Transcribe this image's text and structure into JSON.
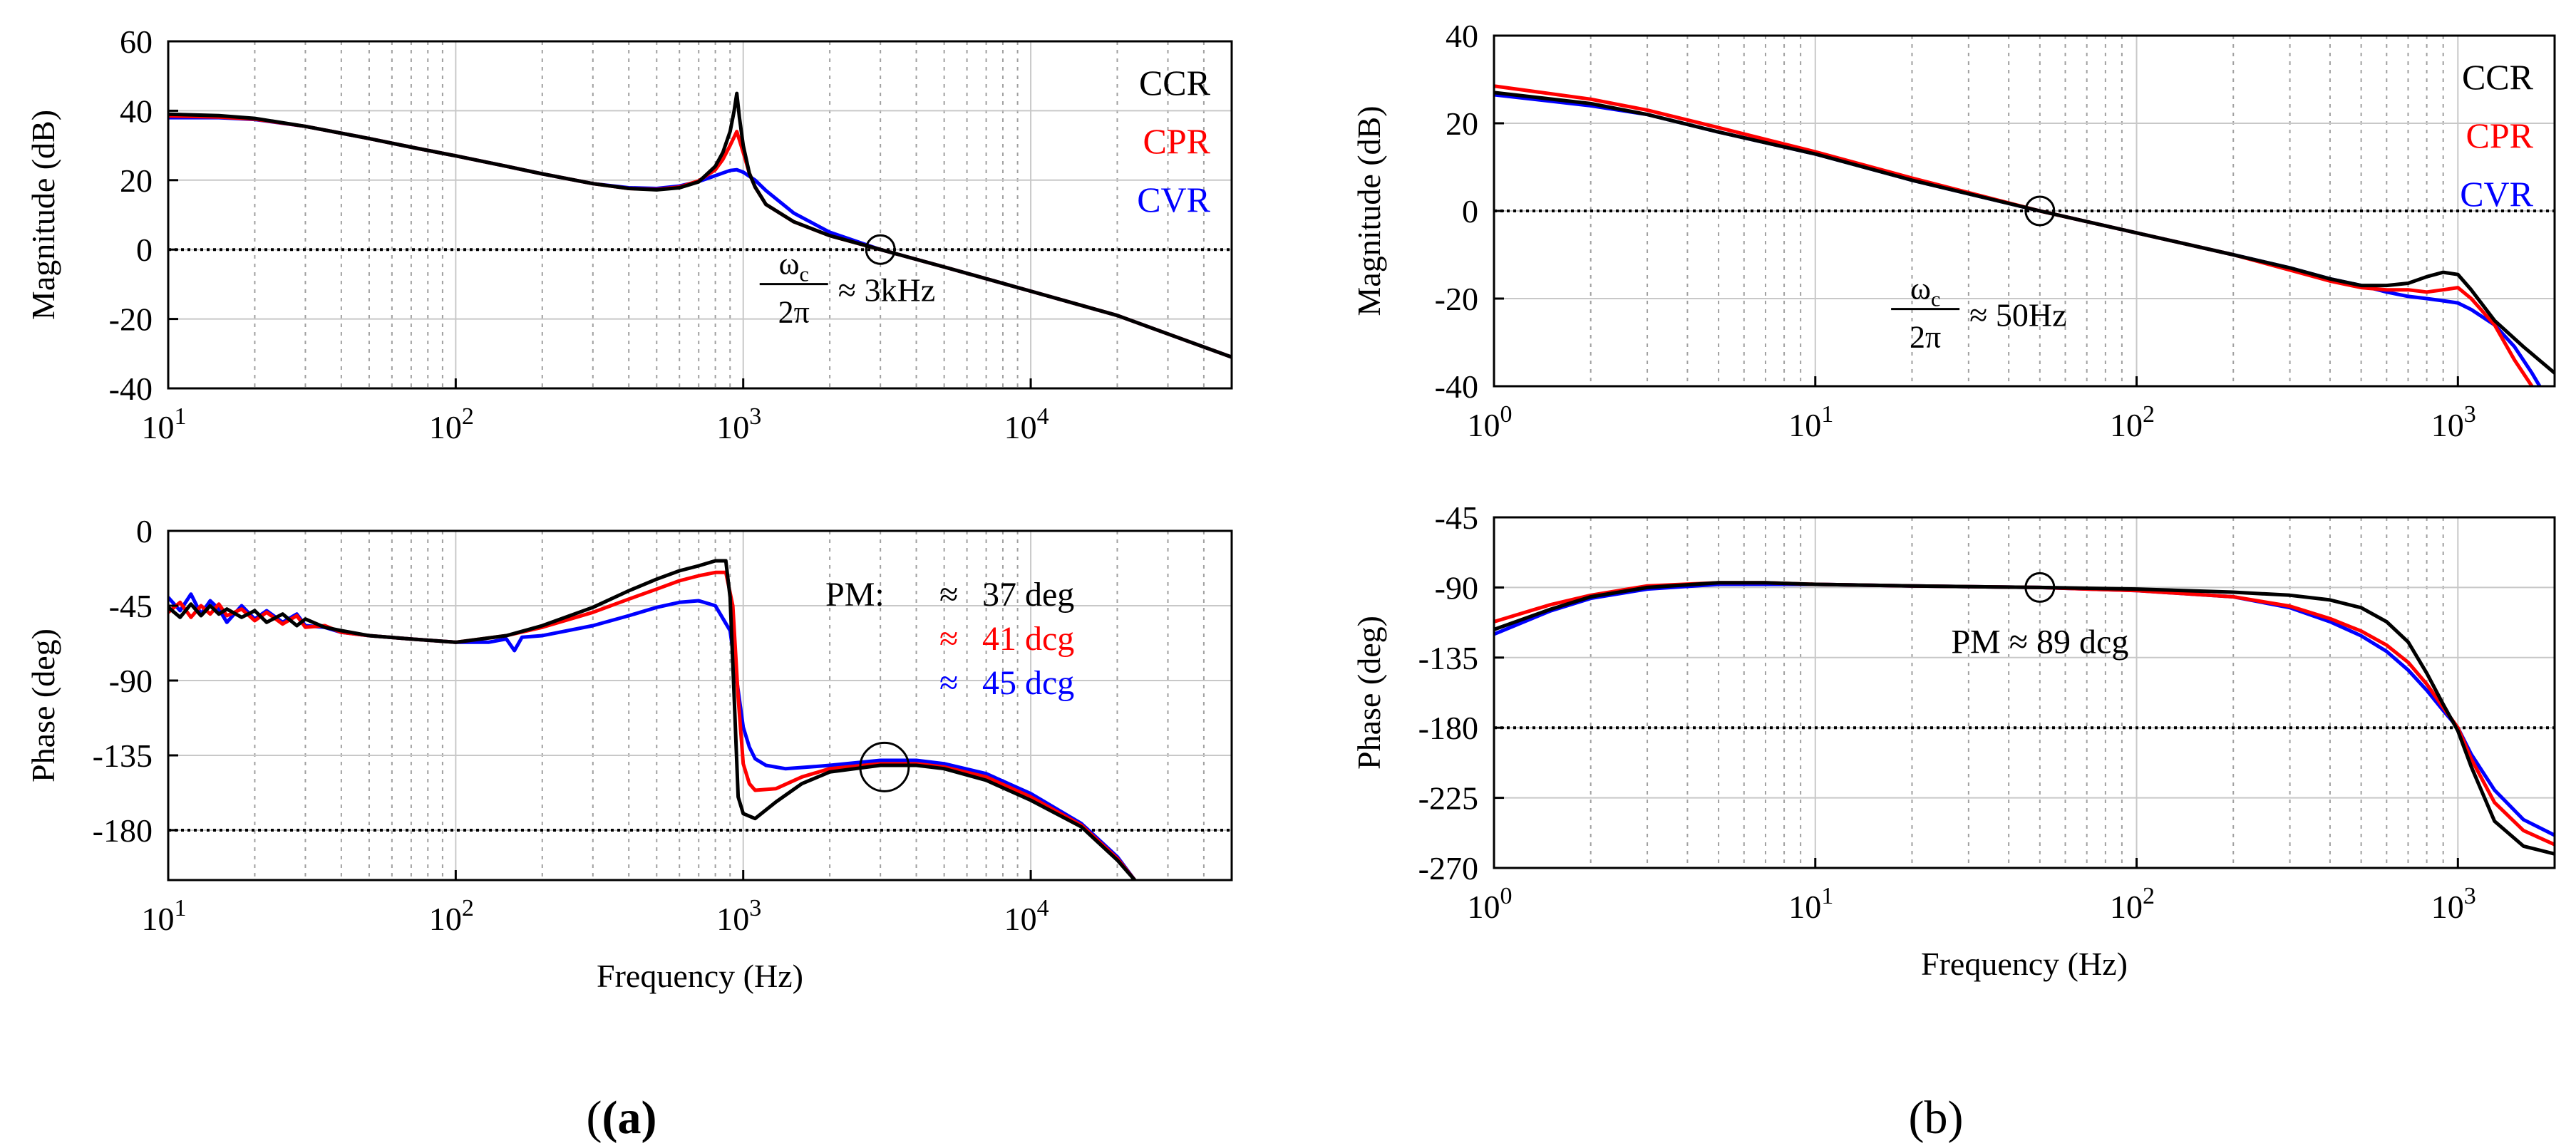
{
  "figure": {
    "panel_a_label": "(a)",
    "panel_b_label": "(b)"
  },
  "colors": {
    "CCR": "#000000",
    "CPR": "#ff0000",
    "CVR": "#0000ff",
    "grid": "#b0b0b0",
    "axis": "#000000"
  },
  "chart_data": [
    {
      "id": "a_mag",
      "type": "line",
      "xscale": "log",
      "xlim": [
        10,
        50000
      ],
      "ylim": [
        -40,
        60
      ],
      "xticks": [
        10,
        100,
        1000,
        10000
      ],
      "xticklabels": [
        [
          "10",
          "1"
        ],
        [
          "10",
          "2"
        ],
        [
          "10",
          "3"
        ],
        [
          "10",
          "4"
        ]
      ],
      "yticks": [
        60,
        40,
        20,
        0,
        -20,
        -40
      ],
      "yticklabels": [
        "60",
        "40",
        "20",
        "0",
        "-20",
        "-40"
      ],
      "xlabel": "",
      "ylabel": "Magnitude (dB)",
      "legend": [
        "CCR",
        "CPR",
        "CVR"
      ],
      "reference_line": 0,
      "marker": {
        "x": 3000,
        "y": 0
      },
      "annotation": {
        "numerator": "ω",
        "subscript": "c",
        "denominator": "2π",
        "text": "≈ 3kHz",
        "x": 1500,
        "y": -12
      },
      "series": [
        {
          "name": "CCR",
          "x": [
            10,
            15,
            20,
            30,
            50,
            70,
            100,
            150,
            200,
            300,
            400,
            500,
            600,
            700,
            800,
            850,
            900,
            930,
            950,
            970,
            1000,
            1050,
            1100,
            1200,
            1500,
            2000,
            3000,
            5000,
            10000,
            20000,
            50000
          ],
          "y": [
            39,
            38.6,
            37.8,
            35.5,
            32,
            29.5,
            27,
            24,
            21.8,
            19,
            17.6,
            17.2,
            17.8,
            19.5,
            24,
            28,
            34,
            40,
            45,
            38,
            30,
            22,
            18,
            13,
            8,
            4,
            0,
            -5,
            -12,
            -19,
            -31
          ]
        },
        {
          "name": "CPR",
          "x": [
            10,
            15,
            20,
            30,
            50,
            70,
            100,
            150,
            200,
            300,
            400,
            500,
            600,
            700,
            800,
            850,
            900,
            950,
            1000,
            1050,
            1100,
            1200,
            1500,
            2000,
            3000,
            5000,
            10000,
            20000,
            50000
          ],
          "y": [
            38.5,
            38.2,
            37.6,
            35.5,
            32,
            29.5,
            27,
            24,
            21.8,
            19,
            17.6,
            17.3,
            18,
            19.8,
            23,
            26,
            30,
            34,
            28,
            22,
            18,
            13,
            8,
            4,
            0,
            -5,
            -12,
            -19,
            -31
          ]
        },
        {
          "name": "CVR",
          "x": [
            10,
            15,
            20,
            30,
            50,
            70,
            100,
            150,
            200,
            300,
            400,
            500,
            600,
            700,
            800,
            900,
            950,
            1000,
            1100,
            1200,
            1500,
            2000,
            3000,
            5000,
            10000,
            20000,
            50000
          ],
          "y": [
            38,
            38,
            37.5,
            35.5,
            32,
            29.5,
            27,
            24,
            21.8,
            19,
            17.8,
            17.6,
            18.3,
            19.6,
            21.3,
            22.8,
            23,
            22.3,
            20,
            17,
            10.5,
            5,
            0,
            -5,
            -12,
            -19,
            -31
          ]
        }
      ]
    },
    {
      "id": "a_phase",
      "type": "line",
      "xscale": "log",
      "xlim": [
        10,
        50000
      ],
      "ylim": [
        -210,
        0
      ],
      "xticks": [
        10,
        100,
        1000,
        10000
      ],
      "xticklabels": [
        [
          "10",
          "1"
        ],
        [
          "10",
          "2"
        ],
        [
          "10",
          "3"
        ],
        [
          "10",
          "4"
        ]
      ],
      "yticks": [
        0,
        -45,
        -90,
        -135,
        -180
      ],
      "yticklabels": [
        "0",
        "-45",
        "-90",
        "-135",
        "-180"
      ],
      "xlabel": "Frequency (Hz)",
      "ylabel": "Phase (deg)",
      "reference_line": -180,
      "marker": {
        "x": 3100,
        "y": -142
      },
      "pm_labels": {
        "title": "PM:",
        "approx": "≈",
        "values": [
          "37 deg",
          "41 dcg",
          "45 dcg"
        ]
      },
      "series": [
        {
          "name": "CCR",
          "x": [
            10,
            11,
            12,
            13,
            14,
            15,
            16,
            18,
            20,
            22,
            25,
            28,
            30,
            35,
            40,
            50,
            70,
            100,
            150,
            200,
            300,
            400,
            500,
            600,
            700,
            800,
            870,
            900,
            930,
            960,
            1000,
            1100,
            1300,
            1600,
            2000,
            3000,
            4000,
            5000,
            7000,
            10000,
            15000,
            20000,
            23000
          ],
          "y": [
            -46,
            -52,
            -44,
            -51,
            -45,
            -50,
            -47,
            -52,
            -48,
            -55,
            -50,
            -57,
            -53,
            -58,
            -60,
            -63,
            -65,
            -67,
            -63,
            -57,
            -46,
            -36,
            -29,
            -24,
            -21,
            -18,
            -18,
            -40,
            -100,
            -160,
            -170,
            -173,
            -163,
            -152,
            -145,
            -141,
            -141,
            -143,
            -150,
            -162,
            -178,
            -198,
            -210
          ]
        },
        {
          "name": "CPR",
          "x": [
            10,
            11,
            12,
            13,
            14,
            15,
            16,
            18,
            20,
            22,
            25,
            28,
            30,
            35,
            40,
            50,
            70,
            100,
            150,
            200,
            300,
            400,
            500,
            600,
            700,
            800,
            870,
            920,
            960,
            1000,
            1050,
            1100,
            1300,
            1600,
            2000,
            3000,
            4000,
            5000,
            7000,
            10000,
            15000,
            20000,
            23000
          ],
          "y": [
            -49,
            -43,
            -52,
            -45,
            -50,
            -44,
            -51,
            -47,
            -54,
            -49,
            -56,
            -51,
            -58,
            -57,
            -61,
            -63,
            -65,
            -67,
            -63,
            -58,
            -49,
            -41,
            -35,
            -30,
            -27,
            -25,
            -25,
            -45,
            -100,
            -140,
            -152,
            -156,
            -155,
            -148,
            -143,
            -140,
            -140,
            -142,
            -148,
            -160,
            -177,
            -197,
            -210
          ]
        },
        {
          "name": "CVR",
          "x": [
            10,
            11,
            12,
            13,
            14,
            15,
            16,
            18,
            20,
            22,
            25,
            28,
            30,
            35,
            40,
            50,
            70,
            100,
            130,
            150,
            160,
            170,
            200,
            300,
            400,
            500,
            600,
            700,
            800,
            900,
            950,
            1000,
            1050,
            1100,
            1200,
            1400,
            1700,
            2000,
            3000,
            4000,
            5000,
            7000,
            10000,
            15000,
            20000,
            23000
          ],
          "y": [
            -40,
            -48,
            -38,
            -50,
            -42,
            -47,
            -55,
            -45,
            -53,
            -48,
            -55,
            -50,
            -57,
            -58,
            -61,
            -63,
            -65,
            -67,
            -67,
            -65,
            -72,
            -64,
            -63,
            -57,
            -51,
            -46,
            -43,
            -42,
            -45,
            -60,
            -90,
            -118,
            -130,
            -137,
            -141,
            -143,
            -142,
            -141,
            -138,
            -138,
            -140,
            -146,
            -158,
            -176,
            -196,
            -210
          ]
        }
      ]
    },
    {
      "id": "b_mag",
      "type": "line",
      "xscale": "log",
      "xlim": [
        1,
        2000
      ],
      "ylim": [
        -40,
        40
      ],
      "xticks": [
        1,
        10,
        100,
        1000
      ],
      "xticklabels": [
        [
          "10",
          "0"
        ],
        [
          "10",
          "1"
        ],
        [
          "10",
          "2"
        ],
        [
          "10",
          "3"
        ]
      ],
      "yticks": [
        40,
        20,
        0,
        -20,
        -40
      ],
      "yticklabels": [
        "40",
        "20",
        "0",
        "-20",
        "-40"
      ],
      "xlabel": "",
      "ylabel": "Magnitude (dB)",
      "legend": [
        "CCR",
        "CPR",
        "CVR"
      ],
      "reference_line": 0,
      "marker": {
        "x": 50,
        "y": 0
      },
      "annotation": {
        "numerator": "ω",
        "subscript": "c",
        "denominator": "2π",
        "text": "≈ 50Hz",
        "x": 22,
        "y": -24
      },
      "series": [
        {
          "name": "CCR",
          "x": [
            1,
            2,
            3,
            5,
            10,
            20,
            50,
            100,
            200,
            300,
            400,
            500,
            600,
            700,
            800,
            900,
            1000,
            1100,
            1300,
            1600,
            2000
          ],
          "y": [
            27,
            24.5,
            22,
            18,
            13,
            7,
            0,
            -5,
            -10,
            -13,
            -15.5,
            -17,
            -17,
            -16.5,
            -15,
            -14,
            -14.5,
            -18,
            -25,
            -31,
            -37
          ]
        },
        {
          "name": "CPR",
          "x": [
            1,
            2,
            3,
            5,
            10,
            20,
            50,
            100,
            200,
            300,
            400,
            500,
            600,
            700,
            800,
            900,
            1000,
            1100,
            1300,
            1500,
            1700,
            1800
          ],
          "y": [
            28.5,
            25.5,
            23,
            19,
            13.5,
            7.5,
            0,
            -5,
            -10,
            -13.5,
            -16,
            -17.5,
            -18,
            -18,
            -18.5,
            -18,
            -17.5,
            -20,
            -26,
            -34,
            -40,
            -42
          ]
        },
        {
          "name": "CVR",
          "x": [
            1,
            2,
            3,
            5,
            10,
            20,
            50,
            100,
            200,
            300,
            400,
            500,
            600,
            700,
            800,
            900,
            1000,
            1100,
            1300,
            1500,
            1700,
            1900
          ],
          "y": [
            26.5,
            24,
            22,
            18,
            13,
            7,
            0,
            -5,
            -10,
            -13,
            -15.5,
            -17,
            -18.5,
            -19.5,
            -20,
            -20.5,
            -21,
            -22.5,
            -26,
            -31,
            -37,
            -43
          ]
        }
      ]
    },
    {
      "id": "b_phase",
      "type": "line",
      "xscale": "log",
      "xlim": [
        1,
        2000
      ],
      "ylim": [
        -270,
        -45
      ],
      "xticks": [
        1,
        10,
        100,
        1000
      ],
      "xticklabels": [
        [
          "10",
          "0"
        ],
        [
          "10",
          "1"
        ],
        [
          "10",
          "2"
        ],
        [
          "10",
          "3"
        ]
      ],
      "yticks": [
        -45,
        -90,
        -135,
        -180,
        -225,
        -270
      ],
      "yticklabels": [
        "-45",
        "-90",
        "-135",
        "-180",
        "-225",
        "-270"
      ],
      "xlabel": "Frequency (Hz)",
      "ylabel": "Phase (deg)",
      "reference_line": -180,
      "marker": {
        "x": 50,
        "y": -90
      },
      "pm_text": "PM ≈ 89 dcg",
      "series": [
        {
          "name": "CCR",
          "x": [
            1,
            1.5,
            2,
            3,
            5,
            7,
            10,
            20,
            50,
            100,
            200,
            300,
            400,
            500,
            600,
            700,
            800,
            900,
            1000,
            1100,
            1300,
            1600,
            2000
          ],
          "y": [
            -117,
            -104,
            -96,
            -90,
            -87,
            -87,
            -88,
            -89,
            -90,
            -91,
            -93,
            -95,
            -98,
            -103,
            -112,
            -125,
            -145,
            -165,
            -182,
            -205,
            -240,
            -256,
            -261
          ]
        },
        {
          "name": "CPR",
          "x": [
            1,
            1.5,
            2,
            3,
            5,
            7,
            10,
            20,
            50,
            100,
            200,
            300,
            400,
            500,
            600,
            700,
            800,
            900,
            1000,
            1100,
            1300,
            1600,
            2000
          ],
          "y": [
            -112,
            -101,
            -95,
            -89,
            -87,
            -87,
            -88,
            -89,
            -90,
            -92,
            -96,
            -102,
            -110,
            -118,
            -127,
            -138,
            -152,
            -167,
            -180,
            -200,
            -228,
            -246,
            -255
          ]
        },
        {
          "name": "CVR",
          "x": [
            1,
            1.5,
            2,
            3,
            5,
            7,
            10,
            20,
            50,
            100,
            200,
            300,
            400,
            500,
            600,
            700,
            800,
            900,
            1000,
            1100,
            1300,
            1600,
            2000
          ],
          "y": [
            -120,
            -105,
            -97,
            -91,
            -88,
            -88,
            -88,
            -89,
            -90,
            -92,
            -96,
            -103,
            -112,
            -121,
            -131,
            -143,
            -156,
            -169,
            -180,
            -197,
            -220,
            -239,
            -249
          ]
        }
      ]
    }
  ]
}
